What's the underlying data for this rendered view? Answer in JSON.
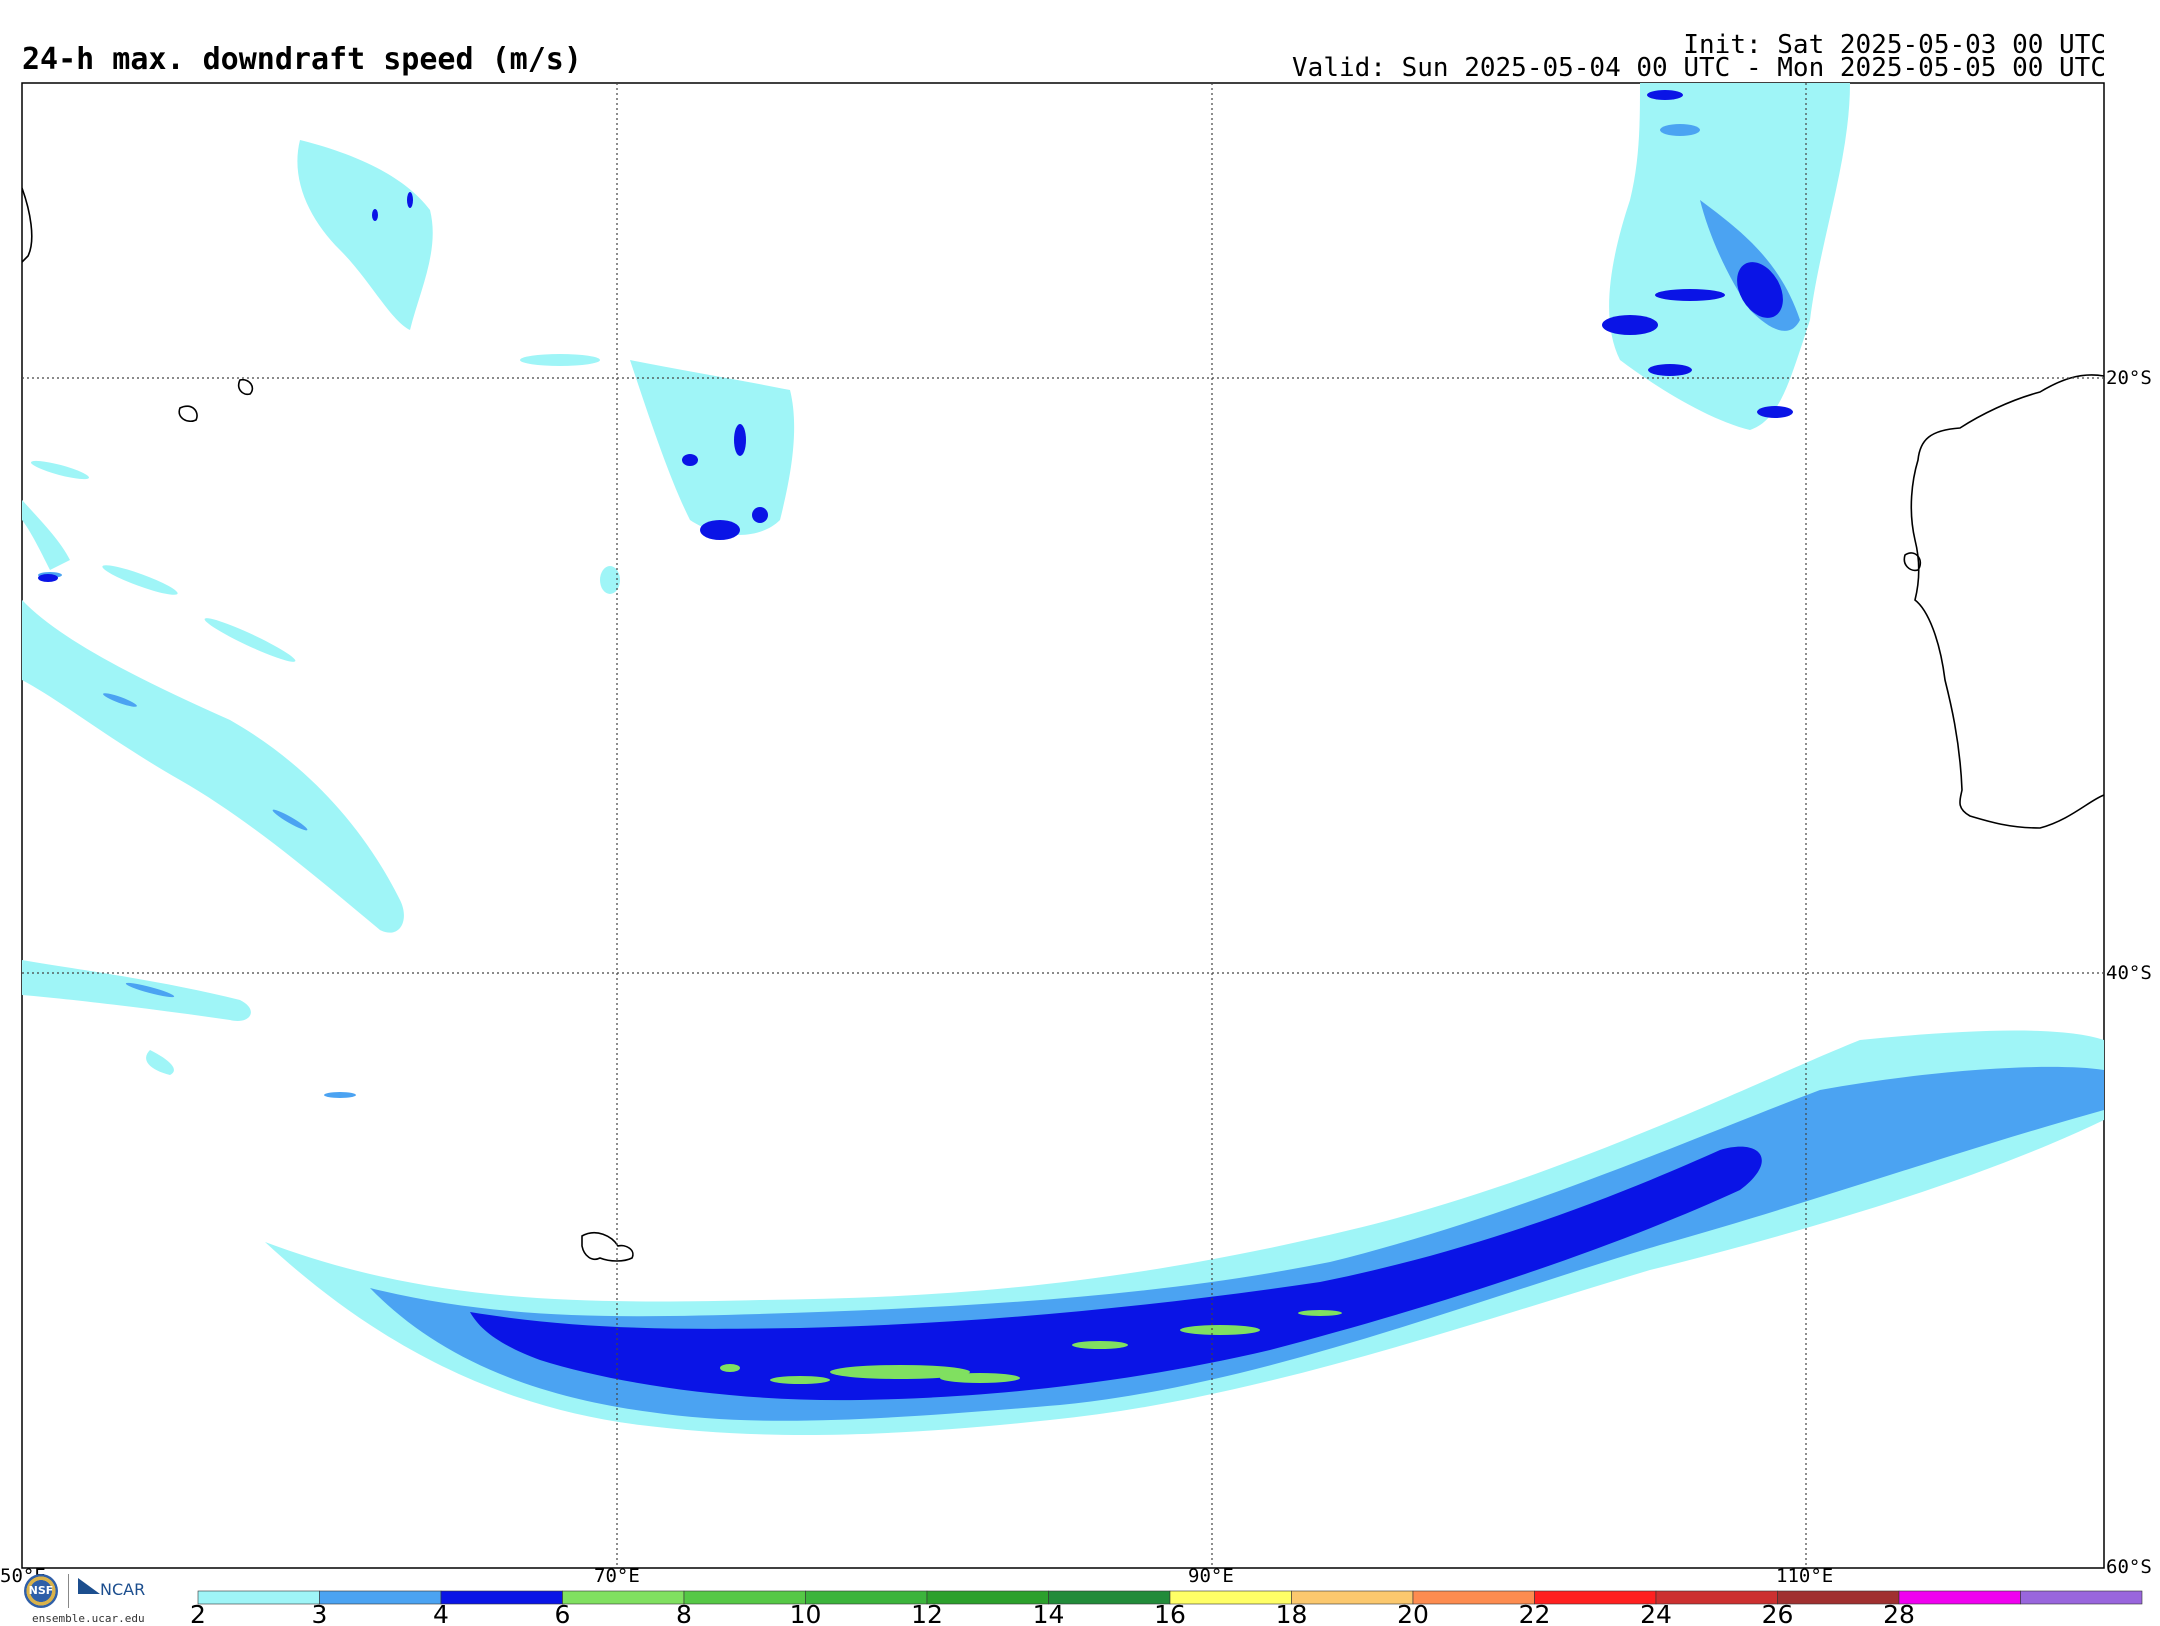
{
  "header": {
    "title": "24-h max. downdraft speed (m/s)",
    "init": "Init: Sat 2025-05-03 00 UTC",
    "valid": "Valid: Sun 2025-05-04 00 UTC - Mon 2025-05-05 00 UTC"
  },
  "map": {
    "lon_labels": [
      "50°E",
      "70°E",
      "90°E",
      "110°E"
    ],
    "lat_labels": [
      "20°S",
      "40°S",
      "60°S"
    ],
    "lon_range": [
      50,
      120
    ],
    "lat_range": [
      -60,
      -10
    ],
    "gridlines": true
  },
  "colorbar": {
    "ticks": [
      "2",
      "3",
      "4",
      "6",
      "8",
      "10",
      "12",
      "14",
      "16",
      "18",
      "20",
      "22",
      "24",
      "26",
      "28"
    ],
    "colors": [
      "#9ff5f7",
      "#4ba3f2",
      "#0a14e6",
      "#80e060",
      "#56c846",
      "#3cb43c",
      "#2ca02c",
      "#228b3a",
      "#ffff66",
      "#fbc86e",
      "#fd8c50",
      "#ff2020",
      "#cc3030",
      "#a03030",
      "#f000f0",
      "#9966dd"
    ]
  },
  "branding": {
    "nsf_mark": "NSF",
    "ncar_mark": "NCAR",
    "url": "ensemble.ucar.edu"
  }
}
